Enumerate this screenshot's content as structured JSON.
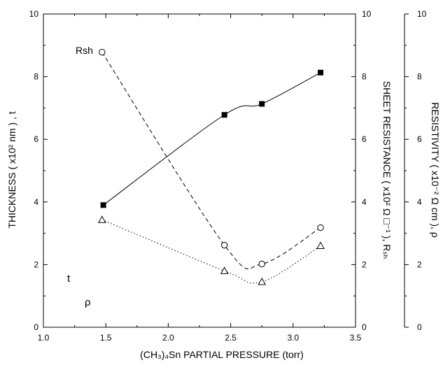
{
  "chart_data": {
    "type": "line",
    "xlabel": "(CH₃)₄Sn PARTIAL PRESSURE (torr)",
    "xlim": [
      1.0,
      3.5
    ],
    "x_ticks": [
      "1.0",
      "1.5",
      "2.0",
      "2.5",
      "3.0",
      "3.5"
    ],
    "axes": {
      "left": {
        "label": "THICKNESS ( x10² nm ) , t",
        "ylim": [
          0,
          10
        ],
        "ticks": [
          "0",
          "2",
          "4",
          "6",
          "8",
          "10"
        ]
      },
      "right1": {
        "label": "SHEET RESISTANCE ( x10² Ω □⁻¹ ), Rₛₕ",
        "ylim": [
          0,
          10
        ],
        "ticks": [
          "0",
          "2",
          "4",
          "6",
          "8",
          "10"
        ]
      },
      "right2": {
        "label": "RESISTIVITY ( x10⁻² Ω cm ), ρ",
        "ylim": [
          0,
          10
        ],
        "ticks": [
          "0",
          "2",
          "4",
          "6",
          "8",
          "10"
        ]
      }
    },
    "series": [
      {
        "name": "t",
        "marker": "filled-square",
        "line": "solid",
        "x": [
          1.48,
          2.45,
          2.75,
          3.22
        ],
        "y": [
          3.9,
          6.78,
          7.13,
          8.13
        ]
      },
      {
        "name": "Rsh",
        "marker": "open-circle",
        "line": "dashed",
        "x": [
          1.47,
          2.45,
          2.75,
          3.22
        ],
        "y": [
          8.78,
          2.62,
          2.02,
          3.18
        ]
      },
      {
        "name": "ρ",
        "marker": "open-triangle",
        "line": "dotted",
        "x": [
          1.47,
          2.45,
          2.75,
          3.22
        ],
        "y": [
          3.43,
          1.8,
          1.45,
          2.6
        ]
      }
    ]
  }
}
